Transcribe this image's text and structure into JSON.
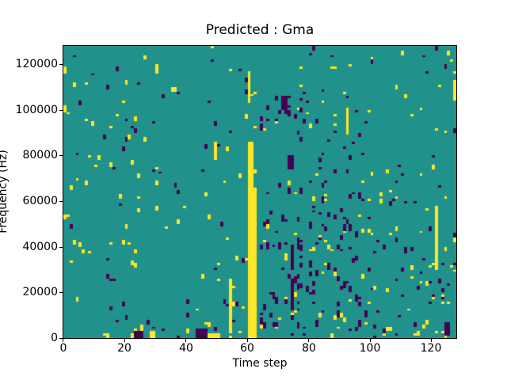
{
  "figure": {
    "title": "Predicted : Gma",
    "background_color": "#ffffff",
    "text_color": "#000000"
  },
  "chart_data": {
    "type": "heatmap",
    "title": "Predicted : Gma",
    "xlabel": "Time step",
    "ylabel": "Frequency (Hz)",
    "xlim": [
      0,
      128
    ],
    "ylim": [
      0,
      128000
    ],
    "x_ticks": [
      0,
      20,
      40,
      60,
      80,
      100,
      120
    ],
    "y_ticks": [
      0,
      20000,
      40000,
      60000,
      80000,
      100000,
      120000
    ],
    "grid": {
      "cols": 128,
      "rows": 128,
      "hz_per_row": 1000,
      "gridlines": false
    },
    "legend": null,
    "colormap": {
      "name": "viridis-3-level",
      "background_mid": "#21918c",
      "low_purple": "#440154",
      "high_yellow": "#fde725"
    },
    "features": [
      {
        "color": "#fde725",
        "x": 60,
        "y": 0,
        "w": 3,
        "h": 66
      },
      {
        "color": "#fde725",
        "x": 60,
        "y": 66,
        "w": 2,
        "h": 20
      },
      {
        "color": "#fde725",
        "x": 60,
        "y": 103,
        "w": 1,
        "h": 14
      },
      {
        "color": "#fde725",
        "x": 54,
        "y": 2,
        "w": 1,
        "h": 24
      },
      {
        "color": "#fde725",
        "x": 121,
        "y": 30,
        "w": 1,
        "h": 28
      },
      {
        "color": "#fde725",
        "x": 92,
        "y": 89,
        "w": 1,
        "h": 12
      },
      {
        "color": "#fde725",
        "x": 49,
        "y": 78,
        "w": 1,
        "h": 8
      },
      {
        "color": "#440154",
        "x": 74,
        "y": 12,
        "w": 1,
        "h": 14
      },
      {
        "color": "#440154",
        "x": 74,
        "y": 30,
        "w": 1,
        "h": 10
      },
      {
        "color": "#440154",
        "x": 71,
        "y": 100,
        "w": 2,
        "h": 6
      },
      {
        "color": "#440154",
        "x": 73,
        "y": 74,
        "w": 2,
        "h": 6
      },
      {
        "color": "#440154",
        "x": 23,
        "y": 0,
        "w": 3,
        "h": 3
      },
      {
        "color": "#fde725",
        "x": 28,
        "y": 0,
        "w": 2,
        "h": 3
      },
      {
        "color": "#440154",
        "x": 43,
        "y": 0,
        "w": 4,
        "h": 4
      },
      {
        "color": "#fde725",
        "x": 47,
        "y": 0,
        "w": 4,
        "h": 2
      },
      {
        "color": "#440154",
        "x": 124,
        "y": 1,
        "w": 2,
        "h": 6
      },
      {
        "color": "#fde725",
        "x": 127,
        "y": 104,
        "w": 1,
        "h": 9
      },
      {
        "color": "#fde725",
        "x": 0,
        "y": 116,
        "w": 1,
        "h": 3
      },
      {
        "color": "#fde725",
        "x": 0,
        "y": 99,
        "w": 1,
        "h": 3
      }
    ],
    "scatter": {
      "seed": 7,
      "groups": [
        {
          "color": "#fde725",
          "count": 135,
          "x": [
            0,
            128
          ],
          "y": [
            0,
            128
          ],
          "h": [
            1,
            2
          ]
        },
        {
          "color": "#440154",
          "count": 110,
          "x": [
            0,
            128
          ],
          "y": [
            0,
            128
          ],
          "h": [
            1,
            2
          ]
        },
        {
          "color": "#440154",
          "count": 90,
          "x": [
            64,
            100
          ],
          "y": [
            4,
            64
          ],
          "h": [
            1,
            3
          ]
        },
        {
          "color": "#440154",
          "count": 20,
          "x": [
            64,
            80
          ],
          "y": [
            88,
            112
          ],
          "h": [
            1,
            2
          ]
        },
        {
          "color": "#440154",
          "count": 15,
          "x": [
            78,
            100
          ],
          "y": [
            64,
            110
          ],
          "h": [
            1,
            2
          ]
        },
        {
          "color": "#fde725",
          "count": 22,
          "x": [
            64,
            100
          ],
          "y": [
            4,
            64
          ],
          "h": [
            1,
            2
          ]
        },
        {
          "color": "#440154",
          "count": 22,
          "x": [
            100,
            128
          ],
          "y": [
            0,
            64
          ],
          "h": [
            1,
            2
          ]
        },
        {
          "color": "#fde725",
          "count": 16,
          "x": [
            100,
            128
          ],
          "y": [
            0,
            64
          ],
          "h": [
            1,
            2
          ]
        },
        {
          "color": "#fde725",
          "count": 14,
          "x": [
            0,
            128
          ],
          "y": [
            0,
            5
          ],
          "h": [
            1,
            2
          ]
        },
        {
          "color": "#440154",
          "count": 10,
          "x": [
            0,
            128
          ],
          "y": [
            0,
            5
          ],
          "h": [
            1,
            2
          ]
        },
        {
          "color": "#fde725",
          "count": 18,
          "x": [
            0,
            32
          ],
          "y": [
            32,
            104
          ],
          "h": [
            1,
            2
          ]
        }
      ]
    }
  }
}
